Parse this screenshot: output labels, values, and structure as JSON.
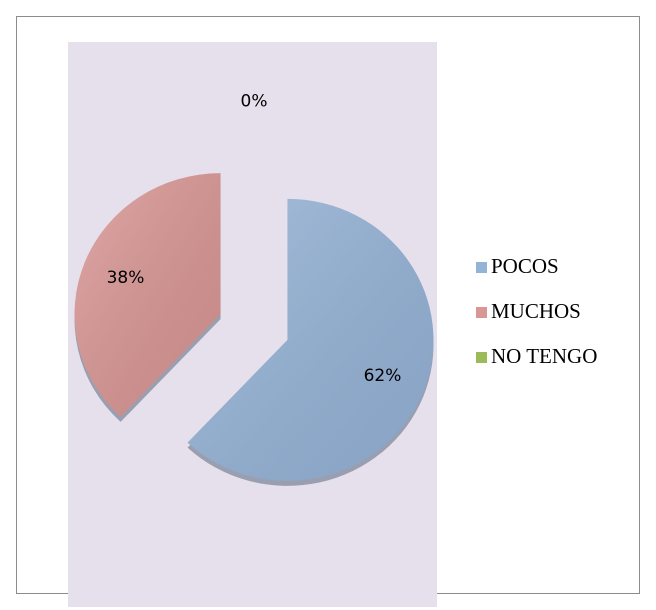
{
  "chart_data": {
    "type": "pie",
    "categories": [
      "POCOS",
      "MUCHOS",
      "NO TENGO"
    ],
    "values": [
      62,
      38,
      0
    ],
    "value_labels": [
      "62%",
      "38%",
      "0%"
    ],
    "colors": [
      "#95b3d7",
      "#d99694",
      "#9bbb59"
    ],
    "legend": "right"
  }
}
